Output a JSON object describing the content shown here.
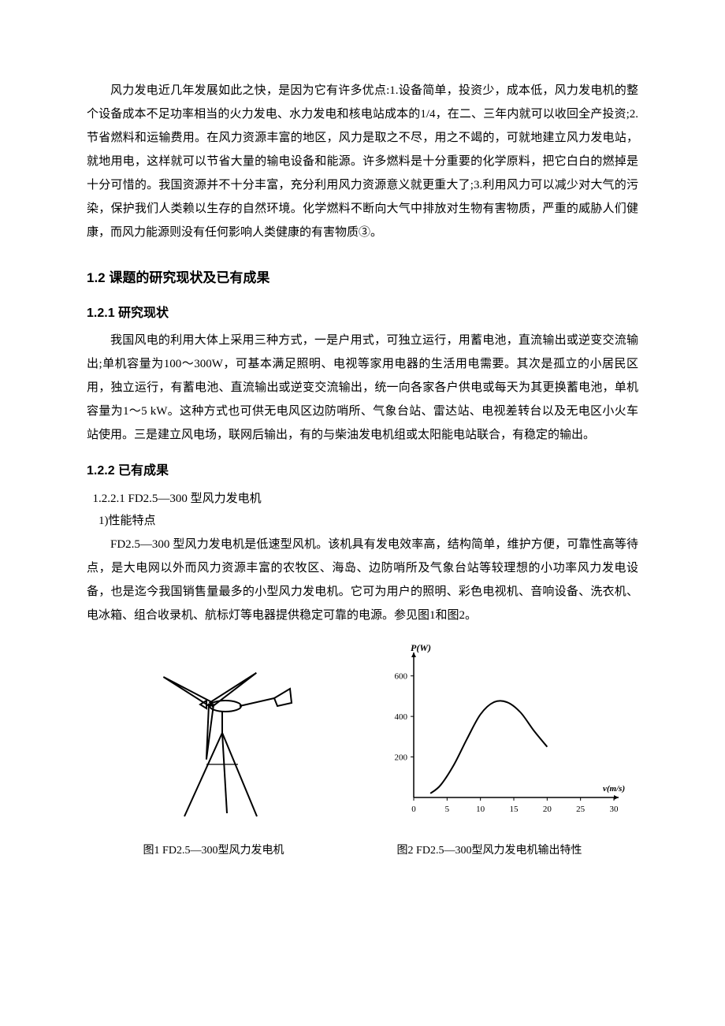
{
  "para_intro": "风力发电近几年发展如此之快，是因为它有许多优点:1.设备简单，投资少，成本低，风力发电机的整个设备成本不足功率相当的火力发电、水力发电和核电站成本的1/4，在二、三年内就可以收回全产投资;2.节省燃料和运输费用。在风力资源丰富的地区，风力是取之不尽，用之不竭的，可就地建立风力发电站，就地用电，这样就可以节省大量的输电设备和能源。许多燃料是十分重要的化学原料，把它白白的燃掉是十分可惜的。我国资源并不十分丰富，充分利用风力资源意义就更重大了;3.利用风力可以减少对大气的污染，保护我们人类赖以生存的自然环境。化学燃料不断向大气中排放对生物有害物质，严重的威胁人们健康，而风力能源则没有任何影响人类健康的有害物质③。",
  "heading_1_2": "1.2 课题的研究现状及已有成果",
  "heading_1_2_1": "1.2.1 研究现状",
  "para_1_2_1": "我国风电的利用大体上采用三种方式，一是户用式，可独立运行，用蓄电池，直流输出或逆变交流输出;单机容量为100～300W，可基本满足照明、电视等家用电器的生活用电需要。其次是孤立的小居民区用，独立运行，有蓄电池、直流输出或逆变交流输出，统一向各家各户供电或每天为其更换蓄电池，单机容量为1～5 kW。这种方式也可供无电风区边防哨所、气象台站、雷达站、电视差转台以及无电区小火车站使用。三是建立风电场，联网后输出，有的与柴油发电机组或太阳能电站联合，有稳定的输出。",
  "heading_1_2_2": "1.2.2 已有成果",
  "heading_1_2_2_1": "1.2.2.1 FD2.5—300 型风力发电机",
  "item_1": "1)性能特点",
  "para_1_2_2_1": "FD2.5—300 型风力发电机是低速型风机。该机具有发电效率高，结构简单，维护方便，可靠性高等待点，是大电网以外而风力资源丰富的农牧区、海岛、边防哨所及气象台站等较理想的小功率风力发电设备，也是迄今我国销售量最多的小型风力发电机。它可为用户的照明、彩色电视机、音响设备、洗衣机、电冰箱、组合收录机、航标灯等电器提供稳定可靠的电源。参见图1和图2。",
  "figure1_caption": "图1 FD2.5—300型风力发电机",
  "figure2_caption": "图2 FD2.5—300型风力发电机输出特性",
  "chart": {
    "type": "line",
    "ylabel": "P(W)",
    "xlabel": "v(m/s)",
    "x_ticks": [
      0,
      5,
      10,
      15,
      20,
      25,
      30
    ],
    "y_ticks": [
      0,
      200,
      400,
      600
    ],
    "xlim": [
      0,
      30
    ],
    "ylim": [
      0,
      700
    ],
    "curve_points": [
      {
        "x": 2.5,
        "y": 20
      },
      {
        "x": 4,
        "y": 60
      },
      {
        "x": 6,
        "y": 160
      },
      {
        "x": 8,
        "y": 290
      },
      {
        "x": 10,
        "y": 410
      },
      {
        "x": 12,
        "y": 470
      },
      {
        "x": 14,
        "y": 470
      },
      {
        "x": 16,
        "y": 420
      },
      {
        "x": 18,
        "y": 330
      },
      {
        "x": 20,
        "y": 250
      }
    ],
    "line_color": "#000000",
    "line_width": 2,
    "axis_color": "#000000",
    "label_fontsize": 12,
    "tick_fontsize": 11,
    "background_color": "#ffffff"
  },
  "turbine": {
    "stroke_color": "#000000",
    "stroke_width": 2
  }
}
